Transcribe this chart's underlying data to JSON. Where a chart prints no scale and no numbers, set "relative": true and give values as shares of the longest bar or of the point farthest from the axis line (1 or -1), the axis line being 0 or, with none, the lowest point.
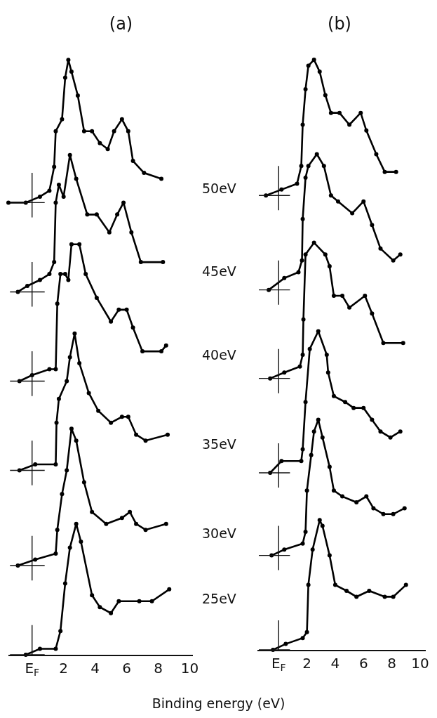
{
  "chart_data": [
    {
      "type": "line",
      "title": "(a)",
      "xlabel": "Binding energy (eV)",
      "relative": true,
      "xlim": [
        -1.5,
        10.2
      ],
      "xticks": [
        {
          "value": 0,
          "label": "E$_{F}$"
        },
        2,
        4,
        6,
        8,
        10
      ],
      "tick_labels": "x",
      "grid": false,
      "legend": false,
      "marker": "circle",
      "line_style": "solid",
      "series": [
        {
          "name": "50eV",
          "color": "#000000",
          "x": [
            -1.5,
            -0.4,
            0.5,
            1.1,
            1.4,
            1.5,
            1.9,
            2.1,
            2.3,
            2.5,
            2.9,
            3.3,
            3.8,
            4.3,
            4.8,
            5.2,
            5.7,
            6.1,
            6.4,
            7.1,
            8.2
          ],
          "values": [
            0.76,
            0.76,
            0.77,
            0.78,
            0.82,
            0.88,
            0.9,
            0.97,
            1.0,
            0.98,
            0.94,
            0.88,
            0.88,
            0.86,
            0.85,
            0.88,
            0.9,
            0.88,
            0.83,
            0.81,
            0.8
          ]
        },
        {
          "name": "45eV",
          "color": "#000000",
          "x": [
            -0.9,
            -0.3,
            0.5,
            1.1,
            1.4,
            1.5,
            1.7,
            2.0,
            2.4,
            2.8,
            3.5,
            4.1,
            4.9,
            5.4,
            5.8,
            6.3,
            6.9,
            8.3
          ],
          "values": [
            0.61,
            0.62,
            0.63,
            0.64,
            0.66,
            0.76,
            0.79,
            0.77,
            0.84,
            0.8,
            0.74,
            0.74,
            0.71,
            0.74,
            0.76,
            0.71,
            0.66,
            0.66
          ]
        },
        {
          "name": "40eV",
          "color": "#000000",
          "x": [
            -0.8,
            0.0,
            1.1,
            1.5,
            1.6,
            1.8,
            2.1,
            2.3,
            2.5,
            3.0,
            3.4,
            4.1,
            5.0,
            5.5,
            6.0,
            6.4,
            7.0,
            8.2,
            8.5
          ],
          "values": [
            0.46,
            0.47,
            0.48,
            0.48,
            0.59,
            0.64,
            0.64,
            0.63,
            0.69,
            0.69,
            0.64,
            0.6,
            0.56,
            0.58,
            0.58,
            0.55,
            0.51,
            0.51,
            0.52
          ]
        },
        {
          "name": "35eV",
          "color": "#000000",
          "x": [
            -0.8,
            0.2,
            1.5,
            1.55,
            1.7,
            2.2,
            2.4,
            2.7,
            3.0,
            3.6,
            4.2,
            5.0,
            5.7,
            6.1,
            6.6,
            7.2,
            8.6
          ],
          "values": [
            0.31,
            0.32,
            0.32,
            0.39,
            0.43,
            0.46,
            0.5,
            0.54,
            0.49,
            0.44,
            0.41,
            0.39,
            0.4,
            0.4,
            0.37,
            0.36,
            0.37
          ]
        },
        {
          "name": "30eV",
          "color": "#000000",
          "x": [
            -0.9,
            0.2,
            1.5,
            1.6,
            1.9,
            2.2,
            2.5,
            2.8,
            3.3,
            3.8,
            4.7,
            5.7,
            6.2,
            6.6,
            7.2,
            8.5
          ],
          "values": [
            0.15,
            0.16,
            0.17,
            0.21,
            0.27,
            0.31,
            0.38,
            0.36,
            0.29,
            0.24,
            0.22,
            0.23,
            0.24,
            0.22,
            0.21,
            0.22
          ]
        },
        {
          "name": "25eV",
          "color": "#000000",
          "x": [
            -0.4,
            0.5,
            1.5,
            1.8,
            2.1,
            2.4,
            2.8,
            3.1,
            3.8,
            4.3,
            5.0,
            5.5,
            6.8,
            7.6,
            8.7
          ],
          "values": [
            0.0,
            0.01,
            0.01,
            0.04,
            0.12,
            0.18,
            0.22,
            0.19,
            0.1,
            0.08,
            0.07,
            0.09,
            0.09,
            0.09,
            0.11
          ]
        }
      ]
    },
    {
      "type": "line",
      "title": "(b)",
      "relative": true,
      "xlim": [
        -1.5,
        10.4
      ],
      "xticks": [
        {
          "value": 0,
          "label": "E$_{F}$"
        },
        2,
        4,
        6,
        8,
        10
      ],
      "tick_labels": "x",
      "grid": false,
      "legend": false,
      "marker": "circle",
      "line_style": "solid",
      "series": [
        {
          "color": "#000000",
          "x": [
            -0.9,
            0.2,
            1.3,
            1.6,
            1.7,
            1.9,
            2.1,
            2.5,
            2.9,
            3.3,
            3.7,
            4.3,
            5.0,
            5.8,
            6.2,
            6.9,
            7.5,
            8.3
          ],
          "values": [
            0.77,
            0.78,
            0.79,
            0.82,
            0.89,
            0.95,
            0.99,
            1.0,
            0.98,
            0.94,
            0.91,
            0.91,
            0.89,
            0.91,
            0.88,
            0.84,
            0.81,
            0.81
          ]
        },
        {
          "color": "#000000",
          "x": [
            -0.7,
            0.4,
            1.4,
            1.65,
            1.7,
            1.9,
            2.1,
            2.7,
            3.2,
            3.7,
            4.2,
            5.2,
            6.0,
            6.6,
            7.2,
            8.1,
            8.6
          ],
          "values": [
            0.61,
            0.63,
            0.64,
            0.66,
            0.73,
            0.8,
            0.82,
            0.84,
            0.82,
            0.77,
            0.76,
            0.74,
            0.76,
            0.72,
            0.68,
            0.66,
            0.67
          ]
        },
        {
          "color": "#000000",
          "x": [
            -0.6,
            0.4,
            1.5,
            1.7,
            1.75,
            1.9,
            2.5,
            3.3,
            3.6,
            3.9,
            4.5,
            5.0,
            6.1,
            6.6,
            7.4,
            8.8
          ],
          "values": [
            0.46,
            0.47,
            0.48,
            0.5,
            0.56,
            0.67,
            0.69,
            0.67,
            0.65,
            0.6,
            0.6,
            0.58,
            0.6,
            0.57,
            0.52,
            0.52
          ]
        },
        {
          "color": "#000000",
          "x": [
            -0.6,
            0.2,
            1.6,
            1.7,
            1.9,
            2.2,
            2.8,
            3.4,
            3.5,
            3.9,
            4.7,
            5.3,
            6.0,
            6.6,
            7.2,
            7.9,
            8.6
          ],
          "values": [
            0.3,
            0.32,
            0.32,
            0.34,
            0.42,
            0.51,
            0.54,
            0.5,
            0.47,
            0.43,
            0.42,
            0.41,
            0.41,
            0.39,
            0.37,
            0.36,
            0.37
          ]
        },
        {
          "color": "#000000",
          "x": [
            -0.5,
            0.4,
            1.7,
            1.9,
            2.0,
            2.3,
            2.5,
            2.8,
            3.1,
            3.6,
            3.9,
            4.5,
            5.5,
            6.2,
            6.7,
            7.4,
            8.1,
            8.9
          ],
          "values": [
            0.16,
            0.17,
            0.18,
            0.2,
            0.27,
            0.33,
            0.37,
            0.39,
            0.36,
            0.31,
            0.27,
            0.26,
            0.25,
            0.26,
            0.24,
            0.23,
            0.23,
            0.24
          ]
        },
        {
          "color": "#000000",
          "x": [
            -0.4,
            0.5,
            1.7,
            2.0,
            2.1,
            2.4,
            2.9,
            3.1,
            3.6,
            4.0,
            4.8,
            5.5,
            6.4,
            7.5,
            8.1,
            9.0
          ],
          "values": [
            0.0,
            0.01,
            0.02,
            0.03,
            0.11,
            0.17,
            0.22,
            0.21,
            0.16,
            0.11,
            0.1,
            0.09,
            0.1,
            0.09,
            0.09,
            0.11
          ]
        }
      ]
    }
  ]
}
